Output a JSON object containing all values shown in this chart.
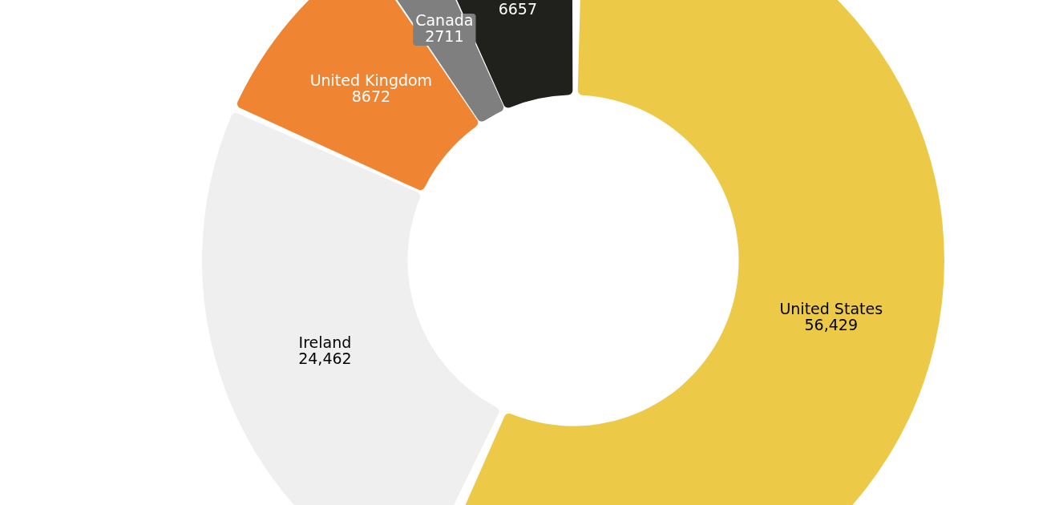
{
  "chart_data": {
    "type": "donut",
    "categories": [
      "United States",
      "Ireland",
      "United Kingdom",
      "Canada",
      null
    ],
    "values": [
      56429,
      24462,
      8672,
      2711,
      6657
    ],
    "colors": [
      "#ecca48",
      "#efefef",
      "#ef8433",
      "#7f7f80",
      "#20201d"
    ],
    "value_labels": [
      "56,429",
      "24,462",
      "8672",
      "2711",
      "6657"
    ]
  }
}
